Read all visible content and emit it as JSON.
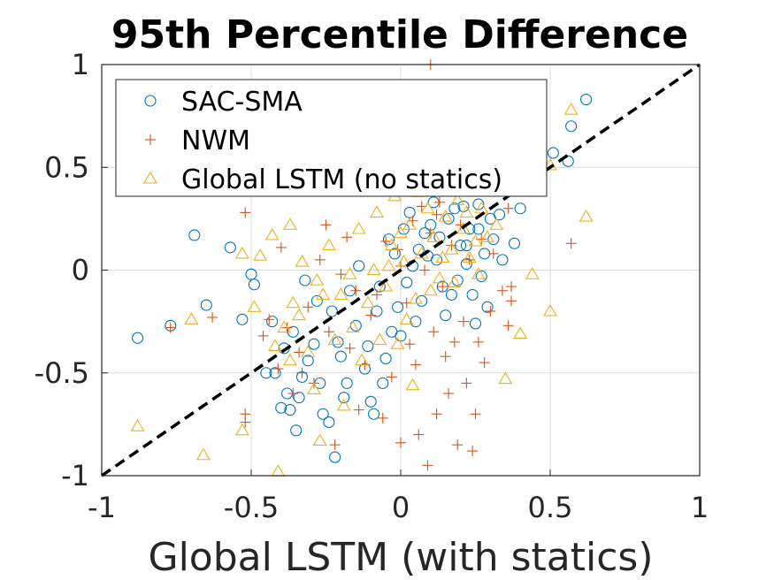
{
  "chart_data": {
    "type": "scatter",
    "title": "95th Percentile Difference",
    "xlabel": "Global LSTM (with statics)",
    "ylabel": "",
    "xlim": [
      -1,
      1
    ],
    "ylim": [
      -1,
      1
    ],
    "xticks": [
      "-1",
      "-0.5",
      "0",
      "0.5",
      "1"
    ],
    "yticks": [
      "1",
      "0.5",
      "0",
      "-0.5",
      "-1"
    ],
    "grid": true,
    "legend_position": "top-left",
    "reference_line": {
      "style": "dashed",
      "from": [
        -1,
        -1
      ],
      "to": [
        1,
        1
      ],
      "color": "#000000"
    },
    "series": [
      {
        "name": "SAC-SMA",
        "marker": "circle",
        "color": "#0072BD",
        "points": [
          [
            0.62,
            0.83
          ],
          [
            0.57,
            0.7
          ],
          [
            0.51,
            0.57
          ],
          [
            0.56,
            0.53
          ],
          [
            0.4,
            0.3
          ],
          [
            0.38,
            0.13
          ],
          [
            -0.88,
            -0.33
          ],
          [
            -0.77,
            -0.27
          ],
          [
            -0.69,
            0.17
          ],
          [
            -0.65,
            -0.17
          ],
          [
            -0.57,
            0.11
          ],
          [
            -0.53,
            -0.24
          ],
          [
            -0.5,
            -0.02
          ],
          [
            -0.49,
            -0.07
          ],
          [
            -0.47,
            0.39
          ],
          [
            -0.43,
            -0.25
          ],
          [
            -0.42,
            -0.5
          ],
          [
            -0.4,
            -0.67
          ],
          [
            -0.38,
            -0.6
          ],
          [
            -0.37,
            -0.68
          ],
          [
            -0.35,
            -0.78
          ],
          [
            -0.34,
            -0.62
          ],
          [
            -0.33,
            -0.52
          ],
          [
            -0.31,
            -0.44
          ],
          [
            -0.29,
            -0.36
          ],
          [
            -0.26,
            -0.7
          ],
          [
            -0.24,
            -0.74
          ],
          [
            -0.22,
            -0.91
          ],
          [
            -0.2,
            -0.42
          ],
          [
            -0.18,
            -0.55
          ],
          [
            -0.15,
            -0.27
          ],
          [
            -0.12,
            -0.48
          ],
          [
            -0.1,
            -0.64
          ],
          [
            -0.09,
            -0.7
          ],
          [
            -0.06,
            -0.55
          ],
          [
            -0.05,
            -0.43
          ],
          [
            -0.03,
            -0.3
          ],
          [
            -0.01,
            -0.18
          ],
          [
            0.02,
            -0.06
          ],
          [
            0.04,
            0.02
          ],
          [
            0.06,
            0.1
          ],
          [
            0.08,
            0.18
          ],
          [
            0.1,
            0.22
          ],
          [
            0.12,
            0.05
          ],
          [
            0.14,
            -0.08
          ],
          [
            0.16,
            0.25
          ],
          [
            0.18,
            0.3
          ],
          [
            0.2,
            0.12
          ],
          [
            0.22,
            0.03
          ],
          [
            0.24,
            -0.12
          ],
          [
            0.26,
            0.2
          ],
          [
            0.28,
            0.08
          ],
          [
            0.3,
            0.25
          ],
          [
            0.33,
            0.27
          ],
          [
            0.23,
            0.2
          ],
          [
            -0.45,
            -0.5
          ],
          [
            -0.36,
            -0.3
          ],
          [
            -0.28,
            -0.15
          ],
          [
            -0.21,
            -0.35
          ],
          [
            -0.17,
            -0.1
          ],
          [
            -0.14,
            0.02
          ],
          [
            -0.08,
            -0.2
          ],
          [
            -0.04,
            0.15
          ],
          [
            0.0,
            -0.32
          ],
          [
            0.03,
            0.28
          ],
          [
            0.07,
            -0.15
          ],
          [
            0.11,
            0.33
          ],
          [
            0.15,
            -0.22
          ],
          [
            0.19,
            -0.05
          ],
          [
            0.21,
            0.31
          ],
          [
            0.25,
            -0.26
          ],
          [
            0.27,
            -0.03
          ],
          [
            0.29,
            -0.18
          ],
          [
            0.31,
            0.15
          ],
          [
            0.34,
            0.05
          ],
          [
            -0.39,
            -0.38
          ],
          [
            -0.32,
            -0.05
          ],
          [
            -0.27,
            -0.55
          ],
          [
            -0.23,
            -0.2
          ],
          [
            -0.19,
            -0.62
          ],
          [
            -0.11,
            -0.37
          ],
          [
            -0.07,
            -0.08
          ],
          [
            -0.02,
            0.08
          ],
          [
            0.01,
            0.2
          ],
          [
            0.05,
            -0.25
          ],
          [
            0.09,
            0.07
          ],
          [
            0.13,
            0.16
          ],
          [
            0.17,
            -0.12
          ],
          [
            0.22,
            0.12
          ],
          [
            0.26,
            0.32
          ]
        ]
      },
      {
        "name": "NWM",
        "marker": "plus",
        "color": "#D95319",
        "points": [
          [
            0.1,
            1.0
          ],
          [
            0.57,
            0.13
          ],
          [
            0.36,
            0.3
          ],
          [
            0.37,
            -0.08
          ],
          [
            0.37,
            -0.15
          ],
          [
            0.36,
            -0.27
          ],
          [
            -0.77,
            -0.28
          ],
          [
            -0.63,
            -0.23
          ],
          [
            -0.52,
            0.28
          ],
          [
            -0.52,
            -0.7
          ],
          [
            -0.52,
            -0.74
          ],
          [
            -0.46,
            -0.32
          ],
          [
            -0.44,
            -0.24
          ],
          [
            -0.41,
            -0.48
          ],
          [
            -0.36,
            -0.6
          ],
          [
            -0.34,
            -0.4
          ],
          [
            -0.31,
            -0.18
          ],
          [
            -0.29,
            -0.55
          ],
          [
            -0.25,
            0.22
          ],
          [
            -0.22,
            -0.85
          ],
          [
            -0.2,
            -0.02
          ],
          [
            -0.17,
            -0.38
          ],
          [
            -0.14,
            -0.68
          ],
          [
            -0.12,
            -0.46
          ],
          [
            -0.08,
            -0.12
          ],
          [
            -0.06,
            -0.72
          ],
          [
            -0.03,
            -0.52
          ],
          [
            0.0,
            -0.84
          ],
          [
            0.03,
            -0.36
          ],
          [
            0.06,
            -0.8
          ],
          [
            0.09,
            -0.95
          ],
          [
            0.12,
            -0.7
          ],
          [
            0.16,
            -0.6
          ],
          [
            0.19,
            -0.85
          ],
          [
            0.22,
            -0.55
          ],
          [
            0.25,
            -0.7
          ],
          [
            0.24,
            -0.88
          ],
          [
            0.28,
            -0.45
          ],
          [
            0.3,
            -0.2
          ],
          [
            0.34,
            -0.1
          ],
          [
            0.05,
            -0.46
          ],
          [
            0.11,
            -0.3
          ],
          [
            0.15,
            -0.42
          ],
          [
            0.18,
            -0.35
          ],
          [
            0.21,
            -0.25
          ],
          [
            0.26,
            -0.35
          ],
          [
            0.02,
            -0.16
          ],
          [
            -0.01,
            0.1
          ],
          [
            0.04,
            0.24
          ],
          [
            0.07,
            0.31
          ],
          [
            0.1,
            0.18
          ],
          [
            0.13,
            0.33
          ],
          [
            0.17,
            0.12
          ],
          [
            0.2,
            0.22
          ],
          [
            0.23,
            0.05
          ],
          [
            -0.1,
            -0.22
          ],
          [
            -0.15,
            -0.1
          ],
          [
            -0.18,
            0.16
          ],
          [
            -0.24,
            -0.3
          ],
          [
            -0.27,
            0.05
          ],
          [
            -0.33,
            -0.5
          ],
          [
            -0.38,
            -0.28
          ],
          [
            -0.4,
            0.11
          ],
          [
            0.08,
            0.0
          ],
          [
            0.14,
            -0.08
          ],
          [
            0.27,
            0.15
          ],
          [
            0.31,
            0.08
          ],
          [
            0.0,
            0.02
          ],
          [
            -0.05,
            0.14
          ],
          [
            0.12,
            0.27
          ]
        ]
      },
      {
        "name": "Global LSTM (no statics)",
        "marker": "triangle",
        "color": "#EDB120",
        "points": [
          [
            0.57,
            0.78
          ],
          [
            0.5,
            0.51
          ],
          [
            0.62,
            0.26
          ],
          [
            0.44,
            -0.02
          ],
          [
            0.5,
            -0.2
          ],
          [
            0.4,
            -0.31
          ],
          [
            0.35,
            -0.53
          ],
          [
            -0.88,
            -0.76
          ],
          [
            -0.66,
            -0.9
          ],
          [
            -0.7,
            -0.24
          ],
          [
            -0.53,
            -0.78
          ],
          [
            -0.53,
            0.08
          ],
          [
            -0.47,
            0.07
          ],
          [
            -0.49,
            -0.18
          ],
          [
            -0.42,
            -0.37
          ],
          [
            -0.41,
            -0.98
          ],
          [
            -0.37,
            -0.44
          ],
          [
            -0.36,
            -0.16
          ],
          [
            -0.34,
            -0.22
          ],
          [
            -0.33,
            0.04
          ],
          [
            -0.31,
            -0.4
          ],
          [
            -0.29,
            -0.58
          ],
          [
            -0.27,
            -0.83
          ],
          [
            -0.26,
            -0.12
          ],
          [
            -0.24,
            0.12
          ],
          [
            -0.22,
            -0.34
          ],
          [
            -0.19,
            -0.66
          ],
          [
            -0.17,
            -0.02
          ],
          [
            -0.16,
            -0.28
          ],
          [
            -0.13,
            -0.44
          ],
          [
            -0.11,
            -0.16
          ],
          [
            -0.09,
            0.0
          ],
          [
            -0.07,
            -0.34
          ],
          [
            -0.05,
            -0.08
          ],
          [
            -0.03,
            0.12
          ],
          [
            -0.01,
            -0.36
          ],
          [
            0.01,
            0.04
          ],
          [
            0.03,
            0.22
          ],
          [
            0.05,
            -0.14
          ],
          [
            0.07,
            0.08
          ],
          [
            0.09,
            0.3
          ],
          [
            0.11,
            0.16
          ],
          [
            0.13,
            -0.04
          ],
          [
            0.15,
            0.26
          ],
          [
            0.17,
            0.1
          ],
          [
            0.19,
            0.34
          ],
          [
            0.21,
            0.2
          ],
          [
            0.23,
            0.06
          ],
          [
            0.25,
            0.14
          ],
          [
            0.27,
            0.3
          ],
          [
            0.04,
            -0.56
          ],
          [
            -0.43,
            0.17
          ],
          [
            -0.37,
            0.22
          ],
          [
            -0.39,
            -0.28
          ],
          [
            -0.28,
            -0.05
          ],
          [
            -0.2,
            -0.12
          ],
          [
            -0.14,
            0.2
          ],
          [
            -0.08,
            0.28
          ],
          [
            -0.02,
            0.36
          ],
          [
            0.02,
            -0.24
          ],
          [
            0.06,
            0.38
          ],
          [
            0.1,
            -0.1
          ],
          [
            0.14,
            0.06
          ],
          [
            0.18,
            -0.06
          ],
          [
            0.22,
            0.28
          ],
          [
            0.26,
            -0.02
          ],
          [
            0.29,
            0.16
          ],
          [
            0.32,
            0.22
          ],
          [
            0.0,
            0.18
          ],
          [
            -0.04,
            0.02
          ]
        ]
      }
    ]
  }
}
